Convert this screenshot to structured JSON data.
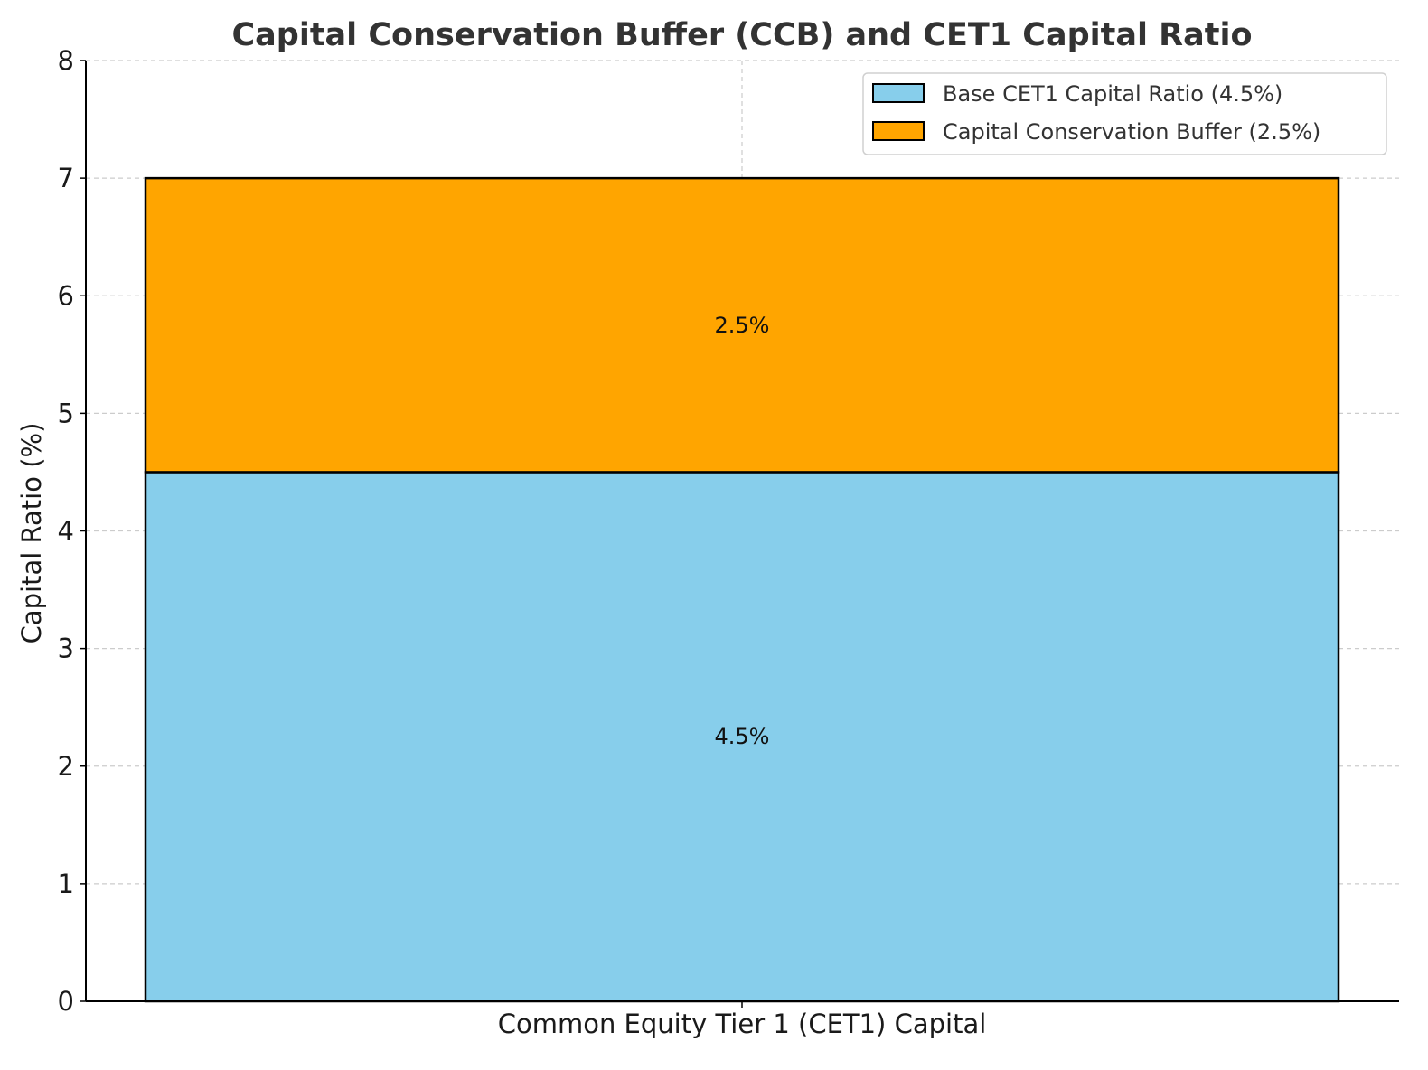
{
  "chart_data": {
    "type": "bar",
    "stacked": true,
    "title": "Capital Conservation Buffer (CCB) and CET1 Capital Ratio",
    "xlabel": "",
    "ylabel": "Capital Ratio (%)",
    "categories": [
      "Common Equity Tier 1 (CET1) Capital"
    ],
    "ylim": [
      0,
      8
    ],
    "yticks": [
      0,
      1,
      2,
      3,
      4,
      5,
      6,
      7,
      8
    ],
    "grid": true,
    "legend_position": "top-right",
    "series": [
      {
        "name": "Base CET1 Capital Ratio (4.5%)",
        "values": [
          4.5
        ],
        "labels": [
          "4.5%"
        ],
        "color": "#87CEEB"
      },
      {
        "name": "Capital Conservation Buffer (2.5%)",
        "values": [
          2.5
        ],
        "labels": [
          "2.5%"
        ],
        "color": "#FFA500"
      }
    ],
    "colors": {
      "grid": "#cccccc",
      "axis": "#000000",
      "bar_edge": "#000000"
    }
  }
}
